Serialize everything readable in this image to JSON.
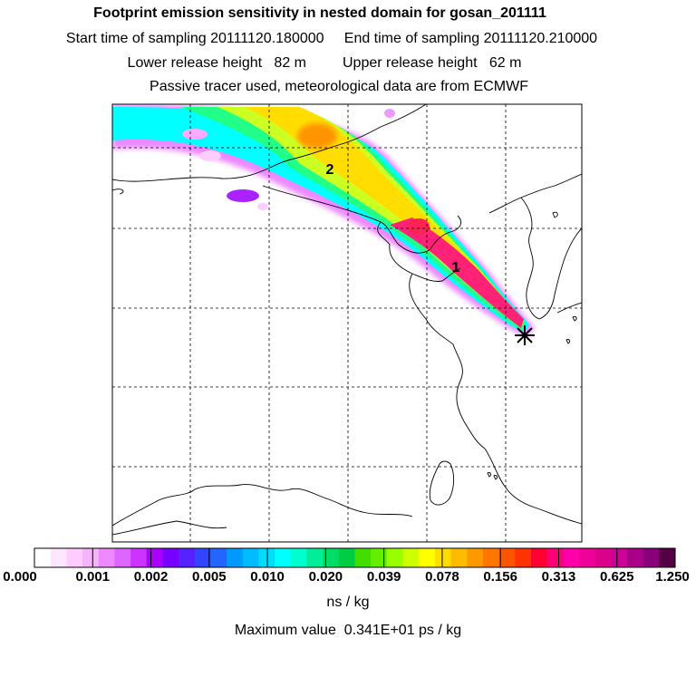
{
  "header": {
    "title": "Footprint emission sensitivity in nested domain for gosan_201111",
    "sampling": "Start time of sampling 20111120.180000     End time of sampling 20111120.210000",
    "release": "Lower release height   82 m         Upper release height   62 m",
    "note": "Passive tracer used, meteorological data are from ECMWF"
  },
  "map": {
    "markers": [
      "1",
      "2"
    ],
    "receptor_icon": "receptor-star-icon",
    "plume_colors": [
      "#ee88ff",
      "#00ffff",
      "#22ff88",
      "#ccff22",
      "#ffdd00",
      "#ff8800",
      "#ff2277",
      "#ff0055"
    ]
  },
  "colorbar": {
    "labels": [
      "0.000",
      "0.001",
      "0.002",
      "0.005",
      "0.010",
      "0.020",
      "0.039",
      "0.078",
      "0.156",
      "0.313",
      "0.625",
      "1.250"
    ],
    "colors": [
      "#ffffff",
      "#ffe6ff",
      "#ffccff",
      "#f5b2ff",
      "#ee88ff",
      "#dd66ff",
      "#cc33ff",
      "#aa00ff",
      "#7700ff",
      "#5522ff",
      "#3344ff",
      "#2266ff",
      "#0099ff",
      "#00bbff",
      "#00ddff",
      "#00ffff",
      "#00ffcc",
      "#00ee99",
      "#00dd66",
      "#00cc44",
      "#44dd00",
      "#66ee00",
      "#99ff00",
      "#ccff00",
      "#ffff00",
      "#ffdd00",
      "#ffbb00",
      "#ff9900",
      "#ff7700",
      "#ff5500",
      "#ff3300",
      "#ff0033",
      "#ff0077",
      "#ff00aa",
      "#ee0099",
      "#dd0088",
      "#cc0099",
      "#aa0088",
      "#880077",
      "#550044"
    ],
    "unit": "ns / kg",
    "max_value": "Maximum value  0.341E+01 ps / kg"
  }
}
